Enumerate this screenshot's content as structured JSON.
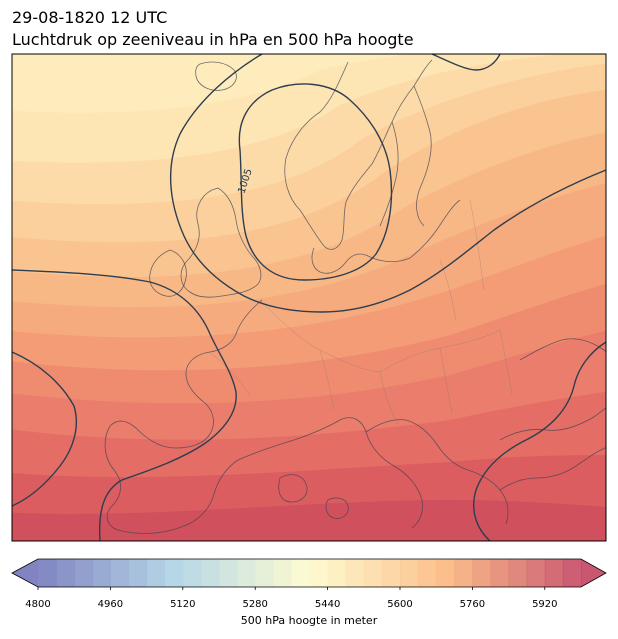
{
  "title": {
    "line1": "29-08-1820 12 UTC",
    "line2": "Luchtdruk op zeeniveau in hPa en 500 hPa hoogte"
  },
  "map": {
    "isobar_label": "1005"
  },
  "colorbar": {
    "label": "500 hPa hoogte in meter",
    "range": [
      4800,
      6000
    ],
    "step": 40,
    "extend": "both",
    "ticks": [
      4800,
      4960,
      5120,
      5280,
      5440,
      5600,
      5760,
      5920
    ],
    "colors": {
      "low": "#6b6fb5",
      "mid_low": "#a9d0e4",
      "mid": "#fefbc9",
      "mid_high": "#fbb478",
      "high": "#c03a58"
    }
  }
}
